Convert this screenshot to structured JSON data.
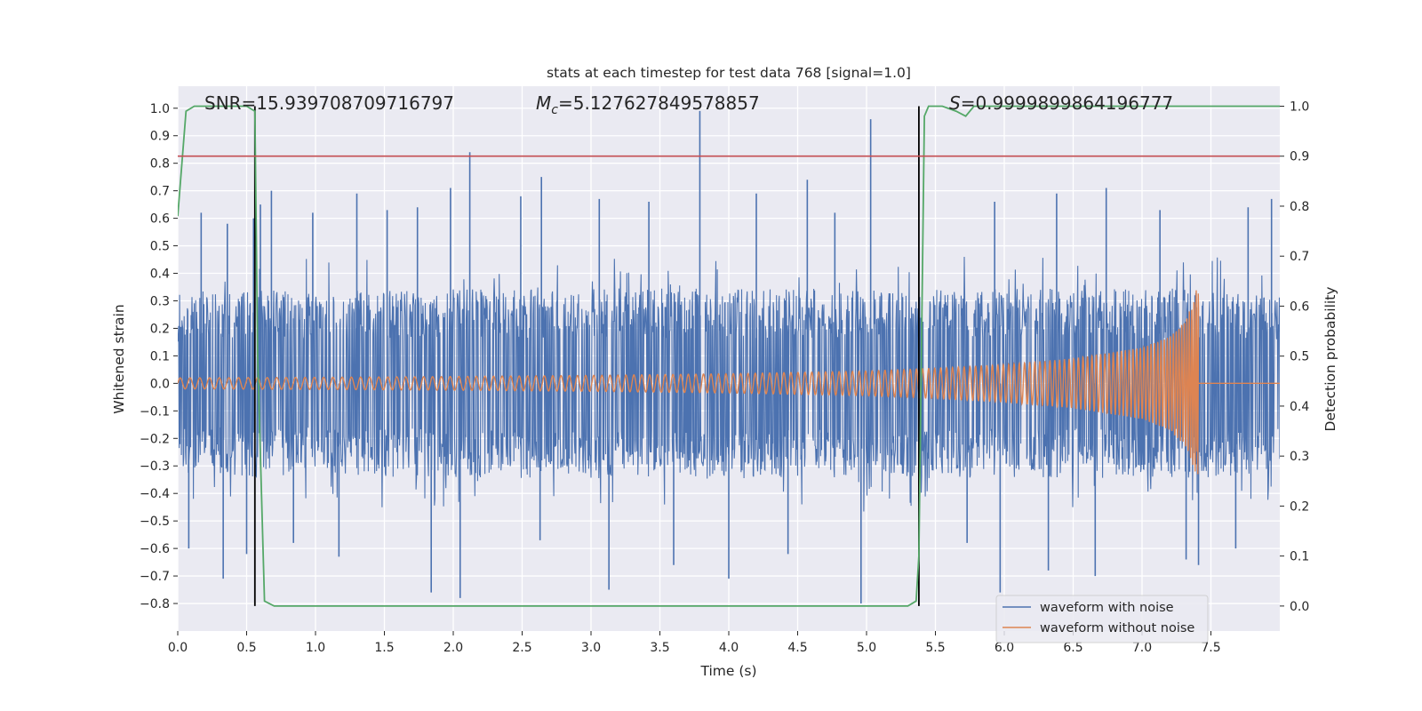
{
  "chart_data": {
    "type": "line",
    "title": "stats at each timestep for test data 768 [signal=1.0]",
    "xlabel": "Time (s)",
    "ylabel": "Whitened strain",
    "y2label": "Detection probability",
    "xlim": [
      0.0,
      8.0
    ],
    "ylim": [
      -0.9,
      1.08
    ],
    "y2lim": [
      -0.05,
      1.04
    ],
    "xticks": [
      0.0,
      0.5,
      1.0,
      1.5,
      2.0,
      2.5,
      3.0,
      3.5,
      4.0,
      4.5,
      5.0,
      5.5,
      6.0,
      6.5,
      7.0,
      7.5
    ],
    "xtick_labels": [
      "0.0",
      "0.5",
      "1.0",
      "1.5",
      "2.0",
      "2.5",
      "3.0",
      "3.5",
      "4.0",
      "4.5",
      "5.0",
      "5.5",
      "6.0",
      "6.5",
      "7.0",
      "7.5"
    ],
    "yticks": [
      -0.8,
      -0.7,
      -0.6,
      -0.5,
      -0.4,
      -0.3,
      -0.2,
      -0.1,
      0.0,
      0.1,
      0.2,
      0.3,
      0.4,
      0.5,
      0.6,
      0.7,
      0.8,
      0.9,
      1.0
    ],
    "ytick_labels": [
      "−0.8",
      "−0.7",
      "−0.6",
      "−0.5",
      "−0.4",
      "−0.3",
      "−0.2",
      "−0.1",
      "0.0",
      "0.1",
      "0.2",
      "0.3",
      "0.4",
      "0.5",
      "0.6",
      "0.7",
      "0.8",
      "0.9",
      "1.0"
    ],
    "y2ticks": [
      0.0,
      0.1,
      0.2,
      0.3,
      0.4,
      0.5,
      0.6,
      0.7,
      0.8,
      0.9,
      1.0
    ],
    "y2tick_labels": [
      "0.0",
      "0.1",
      "0.2",
      "0.3",
      "0.4",
      "0.5",
      "0.6",
      "0.7",
      "0.8",
      "0.9",
      "1.0"
    ],
    "grid": true,
    "legend_position": "lower-right",
    "annotations": {
      "snr": "SNR=15.939708709716797",
      "mc_symbol": "M",
      "mc_subscript": "c",
      "mc_value": "=5.127627849578857",
      "s_symbol": "S",
      "s_value": "=0.9999899864196777"
    },
    "series": [
      {
        "name": "waveform with noise",
        "color": "#4c72b0",
        "axis": "left",
        "envelope_upper": [
          [
            0.0,
            0.27
          ],
          [
            0.5,
            0.3
          ],
          [
            1.0,
            0.29
          ],
          [
            2.0,
            0.3
          ],
          [
            3.0,
            0.3
          ],
          [
            4.0,
            0.3
          ],
          [
            5.0,
            0.3
          ],
          [
            6.0,
            0.3
          ],
          [
            7.0,
            0.3
          ],
          [
            7.4,
            0.3
          ],
          [
            8.0,
            0.28
          ]
        ],
        "envelope_lower": [
          [
            0.0,
            -0.27
          ],
          [
            0.5,
            -0.3
          ],
          [
            1.0,
            -0.29
          ],
          [
            2.0,
            -0.3
          ],
          [
            3.0,
            -0.3
          ],
          [
            4.0,
            -0.3
          ],
          [
            5.0,
            -0.3
          ],
          [
            6.0,
            -0.3
          ],
          [
            7.0,
            -0.3
          ],
          [
            7.4,
            -0.3
          ],
          [
            8.0,
            -0.28
          ]
        ],
        "spikes": [
          [
            0.17,
            0.62
          ],
          [
            0.36,
            0.58
          ],
          [
            0.55,
            0.6
          ],
          [
            0.6,
            0.65
          ],
          [
            0.68,
            0.7
          ],
          [
            0.98,
            0.62
          ],
          [
            1.3,
            0.69
          ],
          [
            1.52,
            0.63
          ],
          [
            1.74,
            0.64
          ],
          [
            1.98,
            0.71
          ],
          [
            2.12,
            0.84
          ],
          [
            2.49,
            0.68
          ],
          [
            2.64,
            0.75
          ],
          [
            3.06,
            0.67
          ],
          [
            3.42,
            0.66
          ],
          [
            3.79,
            0.99
          ],
          [
            4.2,
            0.69
          ],
          [
            4.57,
            0.74
          ],
          [
            4.77,
            0.62
          ],
          [
            5.03,
            0.96
          ],
          [
            5.93,
            0.66
          ],
          [
            6.38,
            0.69
          ],
          [
            6.74,
            0.71
          ],
          [
            7.13,
            0.63
          ],
          [
            7.77,
            0.64
          ],
          [
            7.94,
            0.67
          ],
          [
            0.08,
            -0.6
          ],
          [
            0.33,
            -0.71
          ],
          [
            0.5,
            -0.62
          ],
          [
            0.84,
            -0.58
          ],
          [
            1.17,
            -0.63
          ],
          [
            1.84,
            -0.76
          ],
          [
            2.05,
            -0.78
          ],
          [
            2.63,
            -0.57
          ],
          [
            3.13,
            -0.75
          ],
          [
            3.6,
            -0.66
          ],
          [
            4.0,
            -0.71
          ],
          [
            4.43,
            -0.62
          ],
          [
            4.96,
            -0.8
          ],
          [
            5.73,
            -0.58
          ],
          [
            5.97,
            -0.76
          ],
          [
            6.32,
            -0.68
          ],
          [
            6.66,
            -0.7
          ],
          [
            7.32,
            -0.64
          ],
          [
            7.41,
            -0.66
          ],
          [
            7.68,
            -0.6
          ]
        ],
        "note": "dense whitened noise, amplitude mostly within ±0.45"
      },
      {
        "name": "waveform without noise",
        "color": "#dd8452",
        "axis": "left",
        "chirp_envelope": [
          [
            0.0,
            0.02
          ],
          [
            1.0,
            0.022
          ],
          [
            2.0,
            0.025
          ],
          [
            3.0,
            0.029
          ],
          [
            4.0,
            0.035
          ],
          [
            5.0,
            0.045
          ],
          [
            5.5,
            0.055
          ],
          [
            6.0,
            0.068
          ],
          [
            6.5,
            0.09
          ],
          [
            7.0,
            0.13
          ],
          [
            7.2,
            0.17
          ],
          [
            7.3,
            0.22
          ],
          [
            7.36,
            0.28
          ],
          [
            7.4,
            0.35
          ],
          [
            7.405,
            -0.33
          ]
        ],
        "start_frequency_hz": 14,
        "end_time_s": 7.41,
        "flat_after": 0.0
      },
      {
        "name": "detection probability",
        "color": "#55a868",
        "axis": "right",
        "x": [
          0.0,
          0.06,
          0.12,
          0.5,
          0.56,
          0.58,
          0.63,
          0.7,
          1.0,
          2.0,
          3.0,
          4.0,
          5.0,
          5.3,
          5.36,
          5.38,
          5.42,
          5.45,
          5.55,
          5.65,
          5.72,
          5.78,
          6.0,
          7.0,
          8.0
        ],
        "values": [
          0.78,
          0.99,
          1.0,
          1.0,
          0.99,
          0.5,
          0.01,
          0.0,
          0.0,
          0.0,
          0.0,
          0.0,
          0.0,
          0.0,
          0.01,
          0.1,
          0.98,
          1.0,
          1.0,
          0.99,
          0.98,
          1.0,
          1.0,
          1.0,
          1.0
        ]
      },
      {
        "name": "threshold",
        "color": "#c44e52",
        "axis": "right",
        "value": 0.9
      }
    ],
    "vertical_markers": [
      0.56,
      5.38
    ],
    "legend_entries": [
      "waveform with noise",
      "waveform without noise"
    ]
  }
}
